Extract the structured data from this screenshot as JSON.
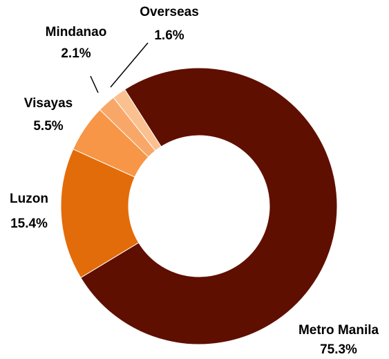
{
  "chart_data": {
    "type": "donut",
    "categories": [
      "Metro Manila",
      "Luzon",
      "Visayas",
      "Mindanao",
      "Overseas"
    ],
    "values": [
      75.3,
      15.4,
      5.5,
      2.1,
      1.6
    ],
    "value_labels": [
      "75.3%",
      "15.4%",
      "5.5%",
      "2.1%",
      "1.6%"
    ],
    "colors": [
      "#5f0f00",
      "#e36c0a",
      "#f79646",
      "#f9a768",
      "#fac090"
    ]
  }
}
